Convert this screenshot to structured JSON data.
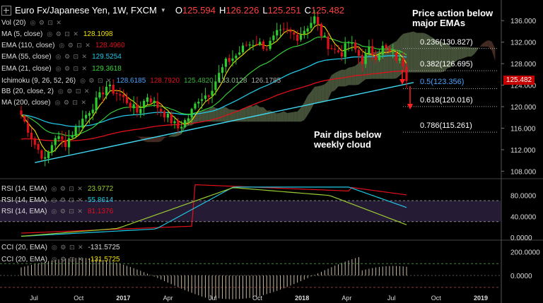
{
  "header": {
    "title": "Euro Fx/Japanese Yen, 1W, FXCM",
    "o_label": "O",
    "o": "125.594",
    "h_label": "H",
    "h": "126.226",
    "l_label": "L",
    "l": "125.251",
    "c_label": "C",
    "c": "125.482"
  },
  "indicators": [
    {
      "label": "Vol (20)",
      "value": "",
      "color": "#dddddd"
    },
    {
      "label": "MA (5, close)",
      "value": "128.1098",
      "color": "#f2e200"
    },
    {
      "label": "EMA (110, close)",
      "value": "128.4960",
      "color": "#e0101a"
    },
    {
      "label": "EMA (55, close)",
      "value": "129.5254",
      "color": "#1fc8e6"
    },
    {
      "label": "EMA (21, close)",
      "value": "129.3618",
      "color": "#39d839"
    },
    {
      "label": "Ichimoku (9, 26, 52, 26)",
      "values": [
        "128.6185",
        "128.7920",
        "125.4820",
        "133.0128",
        "126.1785"
      ],
      "colors": [
        "#4aa3ff",
        "#e0101a",
        "#39b139",
        "#8fbc8f",
        "#aaaaaa"
      ]
    },
    {
      "label": "BB (20, close, 2)",
      "value": "",
      "color": "#dddddd"
    },
    {
      "label": "MA (200, close)",
      "value": "",
      "color": "#dddddd"
    }
  ],
  "rsi_panel": [
    {
      "label": "RSI (14, EMA)",
      "value": "23.9772",
      "color": "#9acd32"
    },
    {
      "label": "RSI (14, EMA)",
      "value": "55.8614",
      "color": "#1fc8e6"
    },
    {
      "label": "RSI (14, EMA)",
      "value": "81.1376",
      "color": "#e0101a"
    }
  ],
  "cci_panel": [
    {
      "label": "CCI (20, EMA)",
      "value": "-131.5725",
      "color": "#dddddd"
    },
    {
      "label": "CCI (20, EMA)",
      "value": "-131.5725",
      "color": "#f2e200"
    }
  ],
  "annotations": {
    "price_action": "Price action below\nmajor EMAs",
    "pair_dips": "Pair dips below\nweekly cloud"
  },
  "fib_levels": [
    {
      "label": "0.236(130.827)",
      "price": 130.827,
      "color": "#ffffff"
    },
    {
      "label": "0.382(126.695)",
      "price": 126.695,
      "color": "#ffffff"
    },
    {
      "label": "0.5(123.356)",
      "price": 123.356,
      "color": "#4aa3ff"
    },
    {
      "label": "0.618(120.016)",
      "price": 120.016,
      "color": "#ffffff"
    },
    {
      "label": "0.786(115.261)",
      "price": 115.261,
      "color": "#ffffff"
    }
  ],
  "price_tag": "125.482",
  "chart_data": {
    "type": "candlestick",
    "price_axis": {
      "ticks": [
        "136.000",
        "132.000",
        "128.000",
        "124.000",
        "120.000",
        "116.000",
        "112.000",
        "108.000"
      ],
      "ylim": [
        107,
        138
      ]
    },
    "rsi_axis": {
      "ticks": [
        "80.0000",
        "40.0000",
        "0.0000"
      ],
      "ylim": [
        0,
        100
      ],
      "levels": [
        70,
        30
      ]
    },
    "cci_axis": {
      "ticks": [
        "200.0000",
        "0.0000"
      ],
      "ylim": [
        -220,
        280
      ],
      "levels": [
        100,
        -100
      ]
    },
    "time_axis": [
      "Jul",
      "Oct",
      "2017",
      "Apr",
      "Jul",
      "Oct",
      "2018",
      "Apr",
      "Jul",
      "Oct",
      "2019"
    ],
    "close_anchors": [
      [
        0,
        118.5
      ],
      [
        4,
        113
      ],
      [
        7,
        110
      ],
      [
        10,
        114.5
      ],
      [
        13,
        113.2
      ],
      [
        16,
        116
      ],
      [
        19,
        118.5
      ],
      [
        22,
        121
      ],
      [
        25,
        123.8
      ],
      [
        28,
        122.5
      ],
      [
        31,
        121
      ],
      [
        34,
        119
      ],
      [
        37,
        122
      ],
      [
        40,
        120
      ],
      [
        43,
        118
      ],
      [
        46,
        116
      ],
      [
        49,
        118
      ],
      [
        52,
        121.5
      ],
      [
        55,
        122.5
      ],
      [
        58,
        126
      ],
      [
        60,
        128.2
      ],
      [
        63,
        129.5
      ],
      [
        66,
        131.5
      ],
      [
        69,
        132
      ],
      [
        72,
        131
      ],
      [
        75,
        133.5
      ],
      [
        78,
        134
      ],
      [
        81,
        133
      ],
      [
        84,
        135
      ],
      [
        86,
        136.5
      ],
      [
        88,
        133.5
      ],
      [
        90,
        131.5
      ],
      [
        92,
        130.5
      ],
      [
        94,
        130
      ],
      [
        96,
        132
      ],
      [
        98,
        130.5
      ],
      [
        100,
        128.5
      ],
      [
        102,
        130.5
      ],
      [
        104,
        129.5
      ],
      [
        106,
        131
      ],
      [
        108,
        130
      ],
      [
        110,
        129
      ],
      [
        112,
        128
      ],
      [
        113,
        125.5
      ]
    ],
    "trendline": {
      "from": [
        4,
        109.6
      ],
      "to": [
        113,
        124.2
      ]
    },
    "fib_anchor_note": "Fibonacci retracement from 2016 low to 2018 high"
  }
}
